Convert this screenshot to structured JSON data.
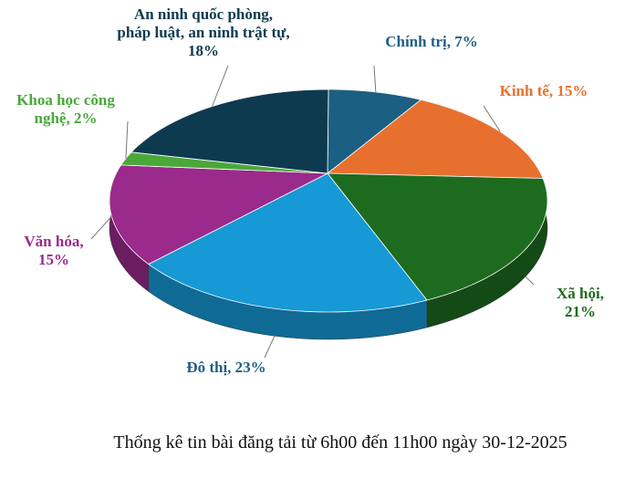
{
  "chart_data": {
    "type": "pie",
    "style": "3d",
    "start": "top",
    "direction": "clockwise",
    "caption": "Thống kê tin bài đăng tải từ 6h00 đến 11h00 ngày 30-12-2025",
    "slices": [
      {
        "label": "Chính trị, 7%",
        "value": 7,
        "color": "#1b5f82"
      },
      {
        "label": "Kinh tế, 15%",
        "value": 15,
        "color": "#e8702f"
      },
      {
        "label": "Xã hội, 21%",
        "value": 21,
        "color": "#1d6b1f"
      },
      {
        "label": "Đô thị, 23%",
        "value": 23,
        "color": "#1699d5"
      },
      {
        "label": "Văn hóa, 15%",
        "value": 15,
        "color": "#9a2a8b"
      },
      {
        "label": "Khoa học công nghệ, 2%",
        "value": 2,
        "color": "#4aa83a"
      },
      {
        "label": "An ninh quốc phòng, pháp luật, an ninh trật tự, 18%",
        "value": 18,
        "color": "#0e3a50"
      }
    ],
    "label_colors": [
      "#1f5f86",
      "#e8702f",
      "#1d6b1f",
      "#1f5f86",
      "#9a2a8b",
      "#4aa83a",
      "#0e3a50"
    ],
    "legend": "none"
  }
}
